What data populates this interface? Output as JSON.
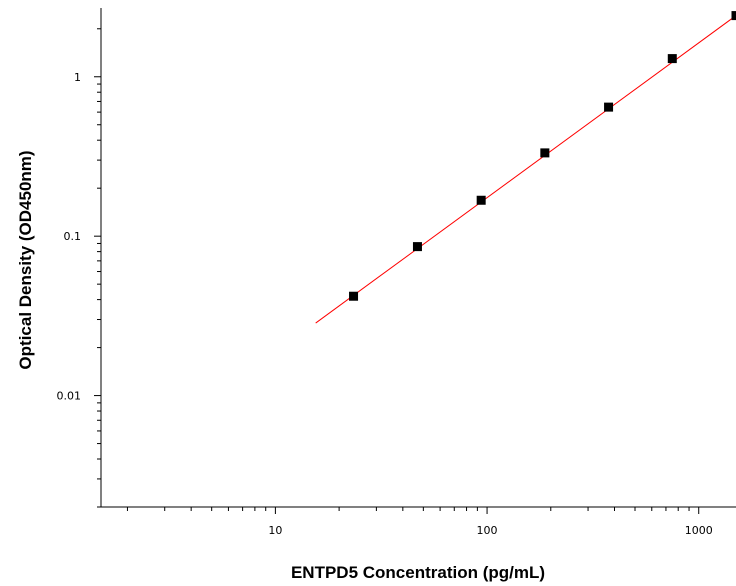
{
  "chart_data": {
    "type": "scatter",
    "xlabel": "ENTPD5 Concentration (pg/mL)",
    "ylabel": "Optical Density (OD450nm)",
    "xscale": "log",
    "yscale": "log",
    "xlim": [
      1.5,
      1500
    ],
    "ylim": [
      0.002,
      2.7
    ],
    "grid": false,
    "x_tick_labels": [
      {
        "value": 10,
        "label": "10"
      },
      {
        "value": 100,
        "label": "100"
      },
      {
        "value": 1000,
        "label": "1000"
      }
    ],
    "y_tick_labels": [
      {
        "value": 0.01,
        "label": "0.01"
      },
      {
        "value": 0.1,
        "label": "0.1"
      },
      {
        "value": 1,
        "label": "1"
      }
    ],
    "series": [
      {
        "x": [
          23.4,
          46.9,
          93.8,
          187.5,
          375,
          750,
          1500
        ],
        "y": [
          0.042,
          0.086,
          0.168,
          0.333,
          0.645,
          1.3,
          2.42
        ],
        "color": "#000000",
        "marker": "square"
      }
    ],
    "fit_line": {
      "x_range": [
        15.5,
        1500
      ],
      "y_range": [
        0.0285,
        2.42
      ],
      "color": "#ff0000"
    }
  }
}
